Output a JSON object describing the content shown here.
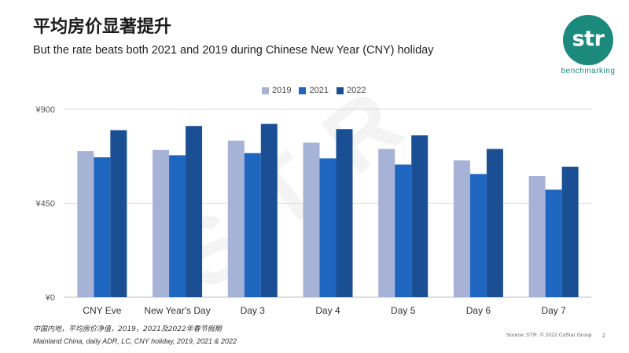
{
  "slide": {
    "title": "平均房价显著提升",
    "subtitle": "But the rate beats both 2021 and 2019 during Chinese New Year (CNY) holiday",
    "footnote_cn": "中国内地，平均房价净值，2019，2021及2022年春节假期",
    "footnote_en": "Mainland China, daily ADR, LC, CNY holiday, 2019, 2021 & 2022",
    "source": "Source: STR. © 2022 CoStar Group",
    "page_number": "2",
    "watermark": "STR"
  },
  "logo": {
    "mark": "str",
    "tagline": "benchmarking",
    "color": "#1B8A7C"
  },
  "chart_data": {
    "type": "bar",
    "categories": [
      "CNY Eve",
      "New Year's Day",
      "Day 3",
      "Day 4",
      "Day 5",
      "Day 6",
      "Day 7"
    ],
    "series": [
      {
        "name": "2019",
        "color": "#A7B2D7",
        "values": [
          700,
          705,
          750,
          740,
          710,
          655,
          580
        ]
      },
      {
        "name": "2021",
        "color": "#1F66C1",
        "values": [
          670,
          680,
          690,
          665,
          635,
          590,
          515
        ]
      },
      {
        "name": "2022",
        "color": "#1B4F93",
        "values": [
          800,
          820,
          830,
          805,
          775,
          710,
          625
        ]
      }
    ],
    "ylim": [
      0,
      900
    ],
    "yticks": [
      0,
      450,
      900
    ],
    "ytick_labels": [
      "¥0",
      "¥450",
      "¥900"
    ],
    "grid": true,
    "legend_position": "top"
  }
}
